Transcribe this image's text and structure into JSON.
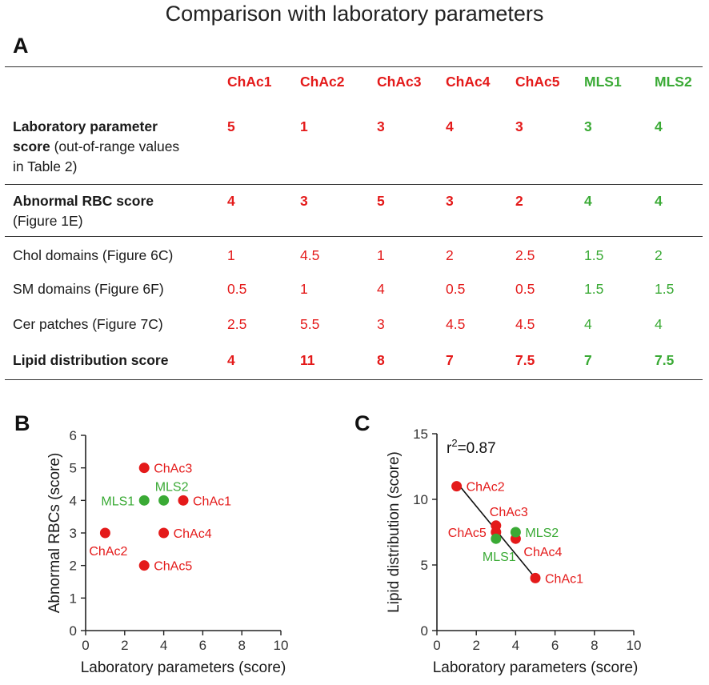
{
  "title": "Comparison with laboratory parameters",
  "panels": {
    "a": "A",
    "b": "B",
    "c": "C"
  },
  "colors": {
    "chac": "#e41a1a",
    "mls": "#3aaa35",
    "text": "#1a1a1a"
  },
  "table": {
    "columns": [
      "ChAc1",
      "ChAc2",
      "ChAc3",
      "ChAc4",
      "ChAc5",
      "MLS1",
      "MLS2"
    ],
    "rows": [
      {
        "label_bold": "Laboratory parameter",
        "label_bold2": "score",
        "label_rest": " (out-of-range values",
        "label_line3": "in Table 2)",
        "values": [
          "5",
          "1",
          "3",
          "4",
          "3",
          "3",
          "4"
        ],
        "bold": true
      },
      {
        "label_bold": "Abnormal RBC score",
        "label_line2": "(Figure 1E)",
        "values": [
          "4",
          "3",
          "5",
          "3",
          "2",
          "4",
          "4"
        ],
        "bold": true
      },
      {
        "label": "Chol domains (Figure 6C)",
        "values": [
          "1",
          "4.5",
          "1",
          "2",
          "2.5",
          "1.5",
          "2"
        ],
        "bold": false
      },
      {
        "label": "SM domains (Figure 6F)",
        "values": [
          "0.5",
          "1",
          "4",
          "0.5",
          "0.5",
          "1.5",
          "1.5"
        ],
        "bold": false
      },
      {
        "label": "Cer patches (Figure 7C)",
        "values": [
          "2.5",
          "5.5",
          "3",
          "4.5",
          "4.5",
          "4",
          "4"
        ],
        "bold": false
      },
      {
        "label_bold": "Lipid distribution score",
        "values": [
          "4",
          "11",
          "8",
          "7",
          "7.5",
          "7",
          "7.5"
        ],
        "bold": true
      }
    ]
  },
  "chart_data": [
    {
      "type": "scatter",
      "panel": "B",
      "xlabel": "Laboratory parameters (score)",
      "ylabel": "Abnormal RBCs (score)",
      "xlim": [
        0,
        10
      ],
      "ylim": [
        0,
        6
      ],
      "xticks": [
        "0",
        "2",
        "4",
        "6",
        "8",
        "10"
      ],
      "yticks": [
        "0",
        "1",
        "2",
        "3",
        "4",
        "5",
        "6"
      ],
      "points": [
        {
          "name": "ChAc1",
          "x": 5,
          "y": 4,
          "group": "chac",
          "label_pos": "right"
        },
        {
          "name": "ChAc2",
          "x": 1,
          "y": 3,
          "group": "chac",
          "label_pos": "below"
        },
        {
          "name": "ChAc3",
          "x": 3,
          "y": 5,
          "group": "chac",
          "label_pos": "right"
        },
        {
          "name": "ChAc4",
          "x": 4,
          "y": 3,
          "group": "chac",
          "label_pos": "right"
        },
        {
          "name": "ChAc5",
          "x": 3,
          "y": 2,
          "group": "chac",
          "label_pos": "right"
        },
        {
          "name": "MLS1",
          "x": 3,
          "y": 4,
          "group": "mls",
          "label_pos": "left"
        },
        {
          "name": "MLS2",
          "x": 4,
          "y": 4,
          "group": "mls",
          "label_pos": "above"
        }
      ]
    },
    {
      "type": "scatter",
      "panel": "C",
      "xlabel": "Laboratory parameters (score)",
      "ylabel": "Lipid distribution (score)",
      "xlim": [
        0,
        10
      ],
      "ylim": [
        0,
        15
      ],
      "xticks": [
        "0",
        "2",
        "4",
        "6",
        "8",
        "10"
      ],
      "yticks": [
        "0",
        "5",
        "10",
        "15"
      ],
      "annotation": "r²=0.87",
      "annotation_base": "r",
      "annotation_sup": "2",
      "annotation_rest": "=0.87",
      "fit_line": {
        "x": [
          1,
          5
        ],
        "y": [
          11.3,
          4.0
        ]
      },
      "points": [
        {
          "name": "ChAc1",
          "x": 5,
          "y": 4,
          "group": "chac",
          "label_pos": "right"
        },
        {
          "name": "ChAc2",
          "x": 1,
          "y": 11,
          "group": "chac",
          "label_pos": "right"
        },
        {
          "name": "ChAc3",
          "x": 3,
          "y": 8,
          "group": "chac",
          "label_pos": "above-right"
        },
        {
          "name": "ChAc4",
          "x": 4,
          "y": 7,
          "group": "chac",
          "label_pos": "below-right"
        },
        {
          "name": "ChAc5",
          "x": 3,
          "y": 7.5,
          "group": "chac",
          "label_pos": "left"
        },
        {
          "name": "MLS1",
          "x": 3,
          "y": 7,
          "group": "mls",
          "label_pos": "below"
        },
        {
          "name": "MLS2",
          "x": 4,
          "y": 7.5,
          "group": "mls",
          "label_pos": "right"
        }
      ]
    }
  ]
}
